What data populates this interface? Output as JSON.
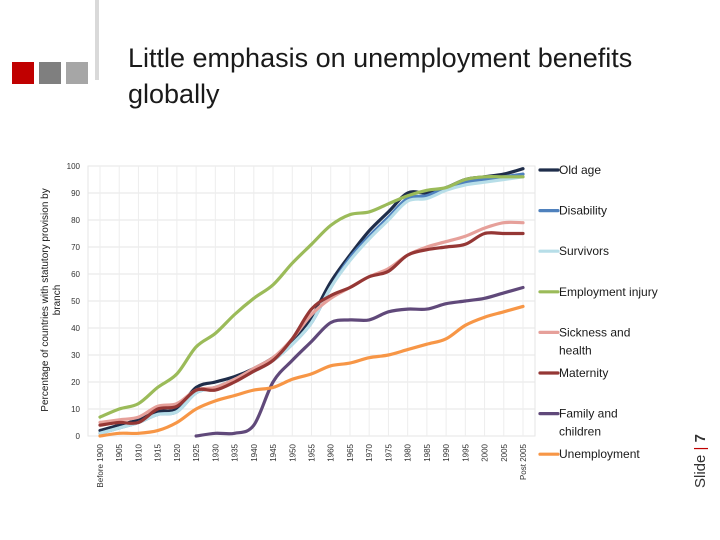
{
  "slide": {
    "title": "Little emphasis on unemployment benefits globally",
    "slide_label": "Slide",
    "separator": "|",
    "slide_number": "7",
    "accent_colors": [
      "#c00000",
      "#7f7f7f",
      "#a6a6a6"
    ]
  },
  "chart_data": {
    "type": "line",
    "title": "",
    "xlabel": "",
    "ylabel": "Percentage of countries with statutory provision by branch",
    "ylim": [
      0,
      100
    ],
    "yticks": [
      "0",
      "10",
      "20",
      "30",
      "40",
      "50",
      "60",
      "70",
      "80",
      "90",
      "100"
    ],
    "categories": [
      "Before 1900",
      "1905",
      "1910",
      "1915",
      "1920",
      "1925",
      "1930",
      "1935",
      "1940",
      "1945",
      "1950",
      "1955",
      "1960",
      "1965",
      "1970",
      "1975",
      "1980",
      "1985",
      "1990",
      "1995",
      "2000",
      "2005",
      "Post 2005"
    ],
    "series": [
      {
        "name": "Old age",
        "color": "#1f2d4a",
        "values": [
          2,
          4,
          6,
          9,
          10,
          18,
          20,
          22,
          25,
          29,
          35,
          44,
          57,
          67,
          76,
          83,
          90,
          90,
          92,
          95,
          96,
          97,
          99
        ]
      },
      {
        "name": "Disability",
        "color": "#4f81bd",
        "values": [
          1,
          3,
          5,
          8,
          9,
          16,
          18,
          21,
          24,
          28,
          34,
          42,
          55,
          66,
          74,
          81,
          88,
          89,
          92,
          94,
          95,
          96,
          97
        ]
      },
      {
        "name": "Survivors",
        "color": "#b7dee8",
        "values": [
          1,
          3,
          5,
          8,
          9,
          16,
          18,
          21,
          24,
          28,
          34,
          42,
          55,
          65,
          73,
          80,
          87,
          88,
          91,
          93,
          94,
          95,
          96
        ]
      },
      {
        "name": "Employment injury",
        "color": "#9bbb59",
        "values": [
          7,
          10,
          12,
          18,
          23,
          33,
          38,
          45,
          51,
          56,
          64,
          71,
          78,
          82,
          83,
          86,
          89,
          91,
          92,
          95,
          96,
          96,
          96
        ]
      },
      {
        "name": "Sickness and health",
        "color": "#e6a09a",
        "values": [
          5,
          6,
          7,
          11,
          12,
          17,
          18,
          21,
          25,
          29,
          36,
          45,
          51,
          55,
          59,
          62,
          67,
          70,
          72,
          74,
          77,
          79,
          79
        ]
      },
      {
        "name": "Maternity",
        "color": "#953735",
        "values": [
          4,
          5,
          5,
          10,
          11,
          17,
          17,
          20,
          24,
          28,
          36,
          47,
          52,
          55,
          59,
          61,
          67,
          69,
          70,
          71,
          75,
          75,
          75
        ]
      },
      {
        "name": "Family and children",
        "color": "#60497a",
        "values": [
          null,
          null,
          null,
          null,
          null,
          0,
          1,
          1,
          4,
          20,
          28,
          35,
          42,
          43,
          43,
          46,
          47,
          47,
          49,
          50,
          51,
          53,
          55
        ]
      },
      {
        "name": "Unemployment",
        "color": "#f79646",
        "values": [
          0,
          1,
          1,
          2,
          5,
          10,
          13,
          15,
          17,
          18,
          21,
          23,
          26,
          27,
          29,
          30,
          32,
          34,
          36,
          41,
          44,
          46,
          48
        ]
      }
    ],
    "legend": {
      "position": "right",
      "labels": [
        "Old age",
        "Disability",
        "Survivors",
        "Employment injury",
        "Sickness and\nhealth",
        "Maternity",
        "Family and\nchildren",
        "Unemployment"
      ]
    }
  }
}
